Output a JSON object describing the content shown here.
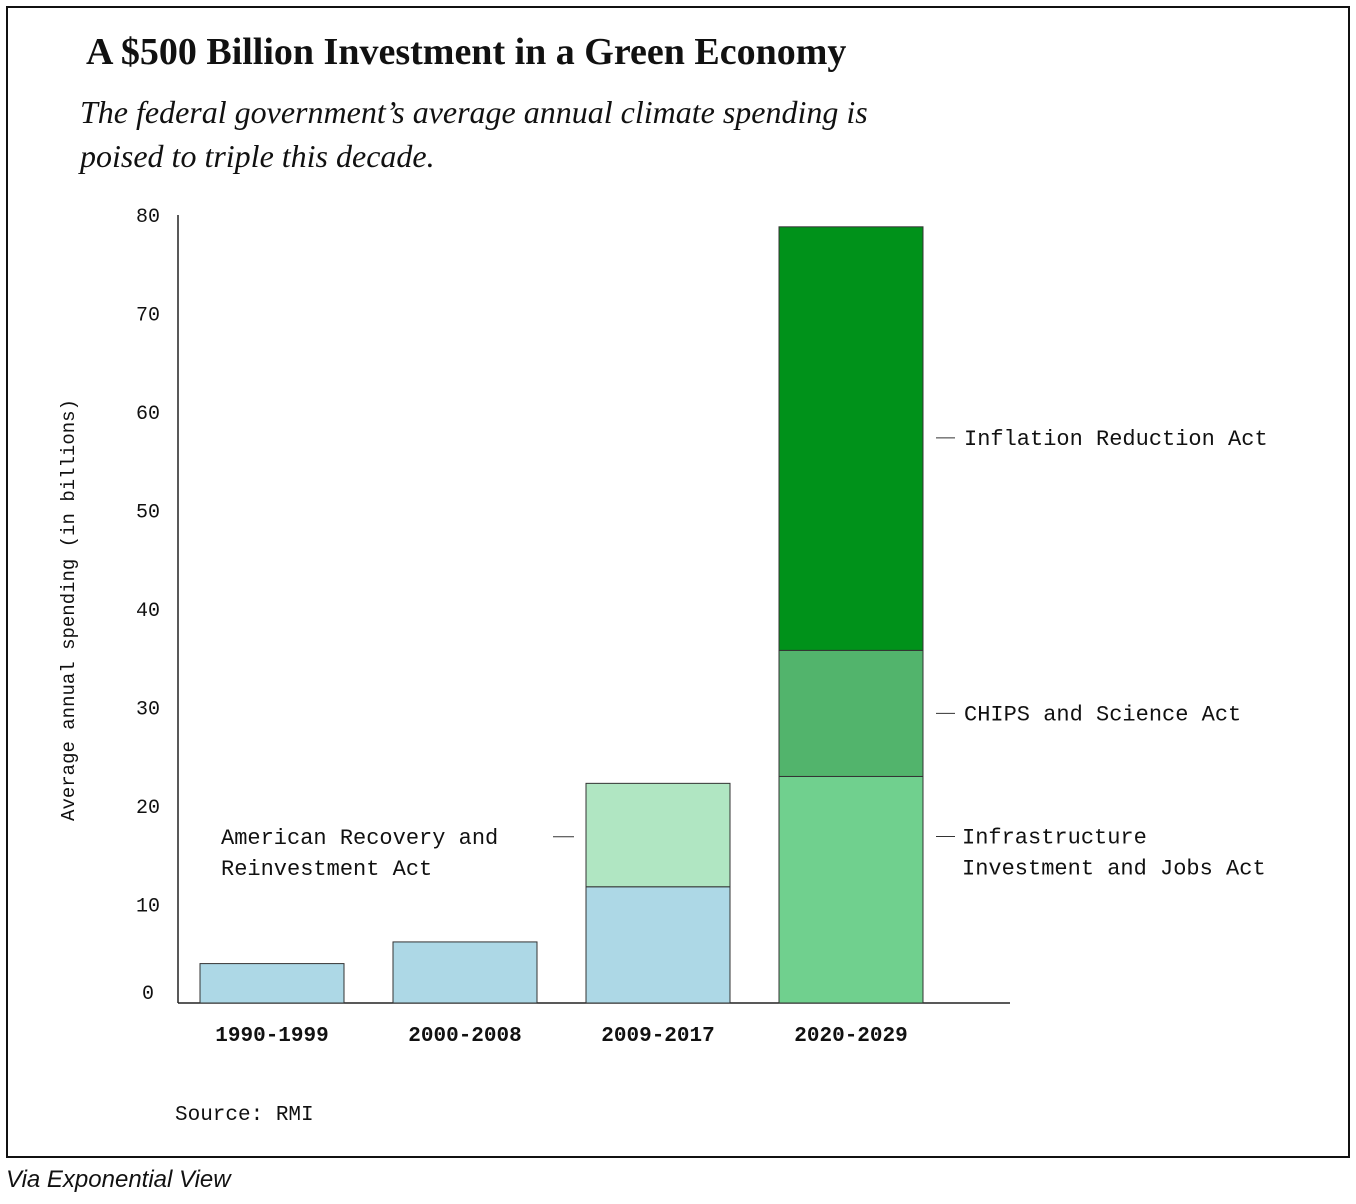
{
  "header": {
    "title": "A $500 Billion Investment in a Green Economy",
    "subtitle": "The federal government’s average annual climate spending is poised to triple this decade."
  },
  "footer": {
    "source": "Source: RMI",
    "credit": "Via Exponential View"
  },
  "chart_data": {
    "type": "bar",
    "stacked": true,
    "title": "A $500 Billion Investment in a Green Economy",
    "subtitle": "The federal government’s average annual climate spending is poised to triple this decade.",
    "xlabel": "",
    "ylabel": "Average annual spending (in billions)",
    "ylim": [
      0,
      80
    ],
    "yticks": [
      0,
      10,
      20,
      30,
      40,
      50,
      60,
      70,
      80
    ],
    "grid": false,
    "categories": [
      "1990-1999",
      "2000-2008",
      "2009-2017",
      "2020-2029"
    ],
    "series": [
      {
        "name": "",
        "color": "#add8e6",
        "values": [
          4,
          6.2,
          11.8,
          0
        ]
      },
      {
        "name": "American Recovery and Reinvestment Act",
        "color": "#b0e6c2",
        "values": [
          0,
          0,
          10.5,
          0
        ]
      },
      {
        "name": "Infrastructure Investment and Jobs Act",
        "color": "#70d08e",
        "values": [
          0,
          0,
          0,
          23
        ]
      },
      {
        "name": "CHIPS and Science Act",
        "color": "#52b46c",
        "values": [
          0,
          0,
          0,
          12.8
        ]
      },
      {
        "name": "Inflation Reduction Act",
        "color": "#00921a",
        "values": [
          0,
          0,
          0,
          43
        ]
      }
    ],
    "annotations": [
      {
        "lines": [
          "Inflation Reduction Act"
        ],
        "category": "2020-2029",
        "series": "Inflation Reduction Act",
        "side": "right"
      },
      {
        "lines": [
          "CHIPS and Science Act"
        ],
        "category": "2020-2029",
        "series": "CHIPS and Science Act",
        "side": "right"
      },
      {
        "lines": [
          "Infrastructure",
          "Investment and Jobs Act"
        ],
        "category": "2020-2029",
        "series": "Infrastructure Investment and Jobs Act",
        "side": "right"
      },
      {
        "lines": [
          "American Recovery and",
          "Reinvestment Act"
        ],
        "category": "2009-2017",
        "series": "American Recovery and Reinvestment Act",
        "side": "left"
      }
    ]
  }
}
